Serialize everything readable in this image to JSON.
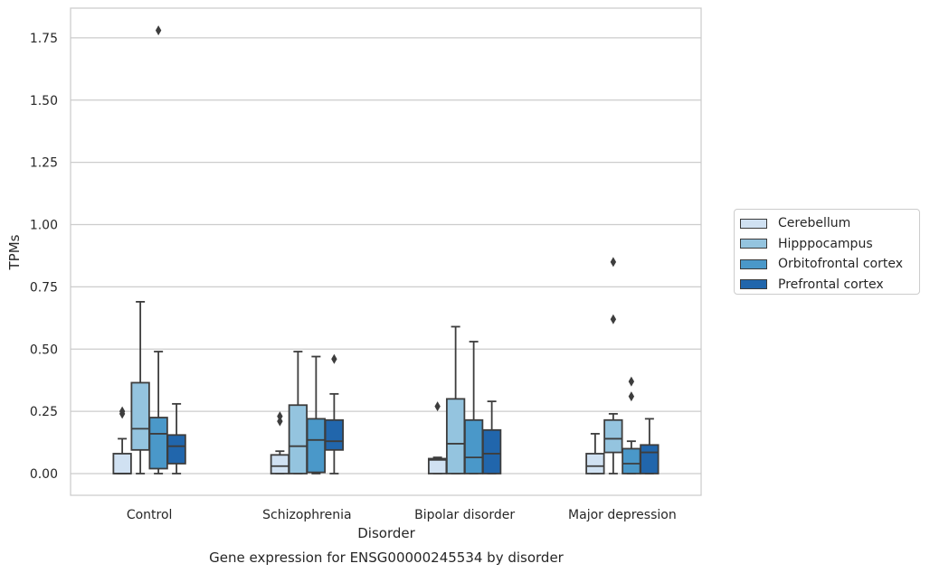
{
  "chart_data": {
    "type": "box",
    "title": "Gene expression for ENSG00000245534 by disorder",
    "xlabel": "Disorder",
    "ylabel": "TPMs",
    "ylim": [
      -0.09,
      1.85
    ],
    "yticks": [
      "0.00",
      "0.25",
      "0.50",
      "0.75",
      "1.00",
      "1.25",
      "1.50",
      "1.75"
    ],
    "categories": [
      "Control",
      "Schizophrenia",
      "Bipolar disorder",
      "Major depression"
    ],
    "grid": true,
    "legend_position": "right",
    "series": [
      {
        "name": "Cerebellum",
        "color": "#d0e1f2",
        "boxes": [
          {
            "min": 0.0,
            "q1": 0.0,
            "median": 0.0,
            "q3": 0.08,
            "max": 0.14,
            "outliers": [
              0.24,
              0.25
            ]
          },
          {
            "min": 0.0,
            "q1": 0.0,
            "median": 0.03,
            "q3": 0.075,
            "max": 0.09,
            "outliers": [
              0.21,
              0.23
            ]
          },
          {
            "min": 0.0,
            "q1": 0.0,
            "median": 0.055,
            "q3": 0.06,
            "max": 0.065,
            "outliers": [
              0.27
            ]
          },
          {
            "min": 0.0,
            "q1": 0.0,
            "median": 0.03,
            "q3": 0.08,
            "max": 0.16,
            "outliers": []
          }
        ]
      },
      {
        "name": "Hipppocampus",
        "color": "#94c4df",
        "boxes": [
          {
            "min": 0.0,
            "q1": 0.095,
            "median": 0.18,
            "q3": 0.365,
            "max": 0.69,
            "outliers": []
          },
          {
            "min": 0.0,
            "q1": 0.0,
            "median": 0.11,
            "q3": 0.275,
            "max": 0.49,
            "outliers": []
          },
          {
            "min": 0.0,
            "q1": 0.0,
            "median": 0.12,
            "q3": 0.3,
            "max": 0.59,
            "outliers": []
          },
          {
            "min": 0.0,
            "q1": 0.085,
            "median": 0.14,
            "q3": 0.215,
            "max": 0.24,
            "outliers": [
              0.62,
              0.85
            ]
          }
        ]
      },
      {
        "name": "Orbitofrontal cortex",
        "color": "#4a98c9",
        "boxes": [
          {
            "min": 0.0,
            "q1": 0.02,
            "median": 0.16,
            "q3": 0.225,
            "max": 0.49,
            "outliers": [
              1.78
            ]
          },
          {
            "min": 0.0,
            "q1": 0.005,
            "median": 0.135,
            "q3": 0.22,
            "max": 0.47,
            "outliers": []
          },
          {
            "min": 0.0,
            "q1": 0.0,
            "median": 0.065,
            "q3": 0.215,
            "max": 0.53,
            "outliers": []
          },
          {
            "min": 0.0,
            "q1": 0.0,
            "median": 0.04,
            "q3": 0.1,
            "max": 0.13,
            "outliers": [
              0.31,
              0.37
            ]
          }
        ]
      },
      {
        "name": "Prefrontal cortex",
        "color": "#2166ac",
        "boxes": [
          {
            "min": 0.0,
            "q1": 0.04,
            "median": 0.11,
            "q3": 0.155,
            "max": 0.28,
            "outliers": []
          },
          {
            "min": 0.0,
            "q1": 0.095,
            "median": 0.13,
            "q3": 0.215,
            "max": 0.32,
            "outliers": [
              0.46
            ]
          },
          {
            "min": 0.0,
            "q1": 0.0,
            "median": 0.08,
            "q3": 0.175,
            "max": 0.29,
            "outliers": []
          },
          {
            "min": 0.0,
            "q1": 0.0,
            "median": 0.085,
            "q3": 0.115,
            "max": 0.22,
            "outliers": []
          }
        ]
      }
    ]
  }
}
